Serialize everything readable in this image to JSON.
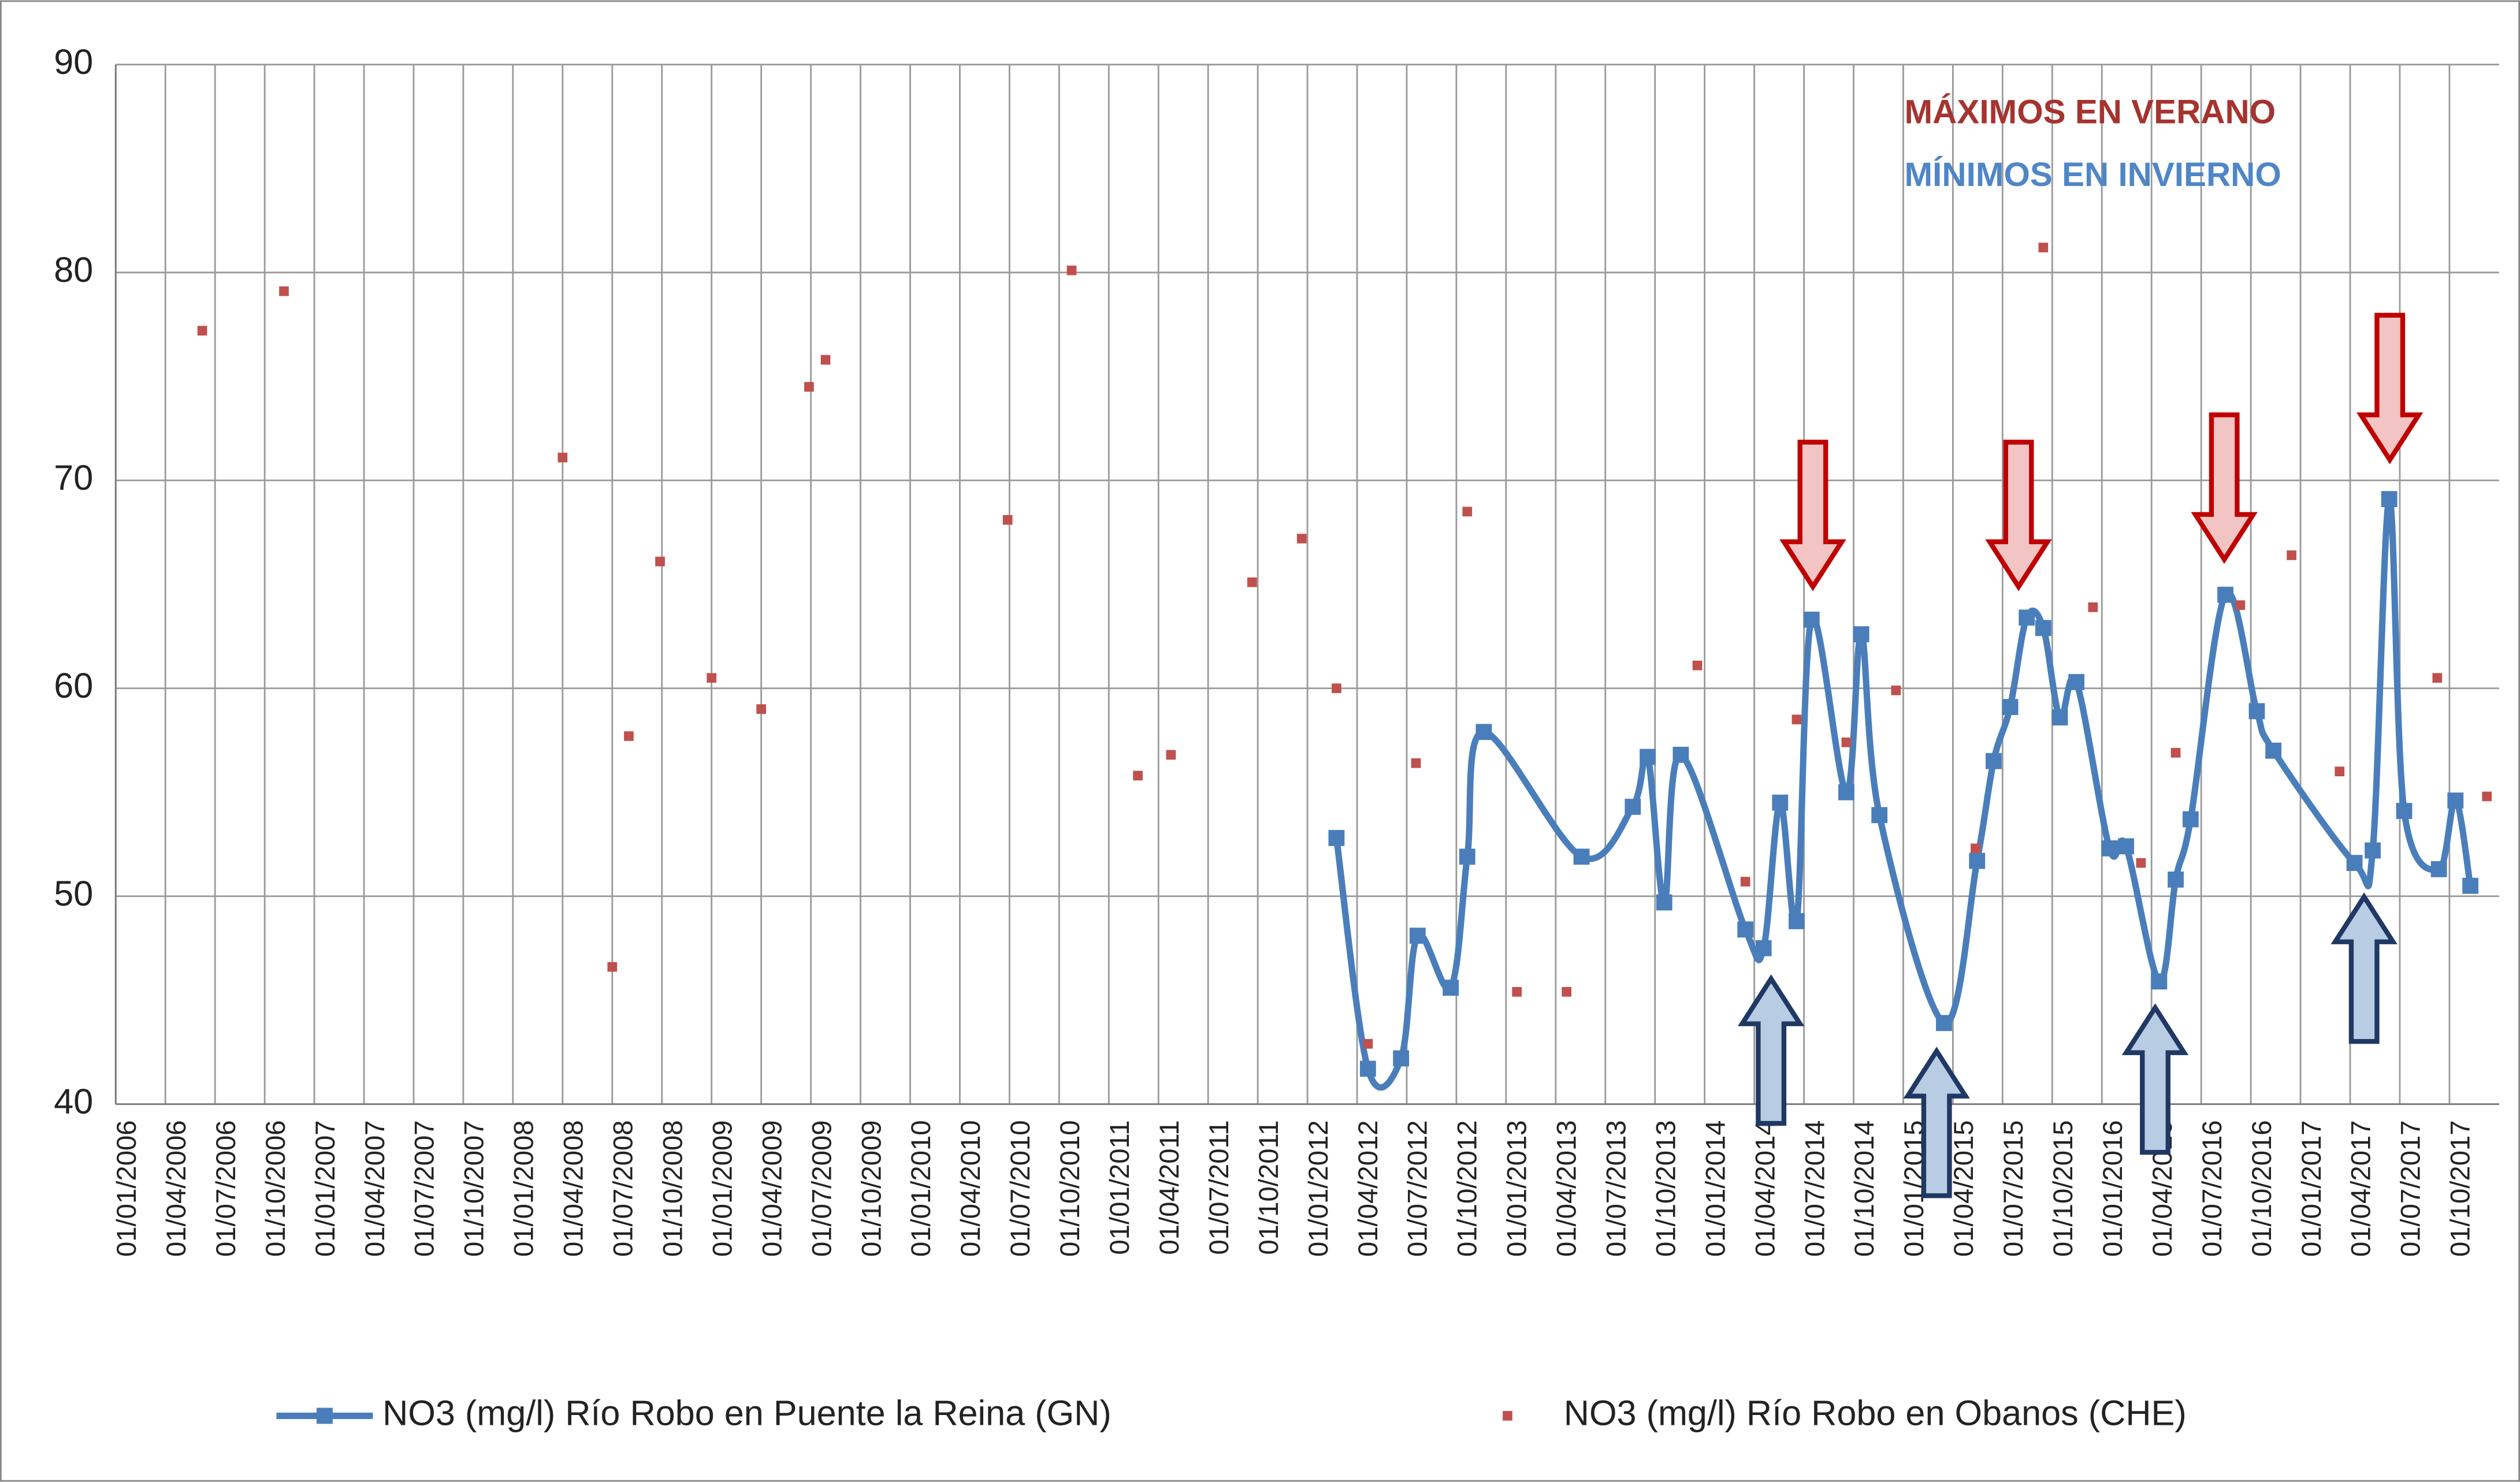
{
  "chart_data": {
    "type": "line",
    "annotations": [
      "MÁXIMOS EN VERANO",
      "MÍNIMOS EN INVIERNO"
    ],
    "xlim": [
      "01/01/2006",
      "01/01/2018"
    ],
    "xticks": [
      "01/01/2006",
      "01/04/2006",
      "01/07/2006",
      "01/10/2006",
      "01/01/2007",
      "01/04/2007",
      "01/07/2007",
      "01/10/2007",
      "01/01/2008",
      "01/04/2008",
      "01/07/2008",
      "01/10/2008",
      "01/01/2009",
      "01/04/2009",
      "01/07/2009",
      "01/10/2009",
      "01/01/2010",
      "01/04/2010",
      "01/07/2010",
      "01/10/2010",
      "01/01/2011",
      "01/04/2011",
      "01/07/2011",
      "01/10/2011",
      "01/01/2012",
      "01/04/2012",
      "01/07/2012",
      "01/10/2012",
      "01/01/2013",
      "01/04/2013",
      "01/07/2013",
      "01/10/2013",
      "01/01/2014",
      "01/04/2014",
      "01/07/2014",
      "01/10/2014",
      "01/01/2015",
      "01/04/2015",
      "01/07/2015",
      "01/10/2015",
      "01/01/2016",
      "01/04/2016",
      "01/07/2016",
      "01/10/2016",
      "01/01/2017",
      "01/04/2017",
      "01/07/2017",
      "01/10/2017"
    ],
    "ylim": [
      40,
      90
    ],
    "yticks": [
      40,
      50,
      60,
      70,
      80,
      90
    ],
    "grid": true,
    "series": [
      {
        "name": "NO3 (mg/l) Río Robo en Puente la Reina (GN)",
        "type": "line",
        "color": "#4a7ebb",
        "x": [
          "24/02/2012",
          "21/04/2012",
          "21/06/2012",
          "21/07/2012",
          "21/09/2012",
          "21/10/2012",
          "21/11/2012",
          "18/05/2013",
          "21/08/2013",
          "18/09/2013",
          "18/10/2013",
          "18/11/2013",
          "15/03/2014",
          "18/04/2014",
          "18/05/2014",
          "18/06/2014",
          "15/07/2014",
          "18/09/2014",
          "15/10/2014",
          "18/11/2014",
          "15/03/2015",
          "15/05/2015",
          "15/06/2015",
          "15/07/2015",
          "15/08/2015",
          "15/09/2015",
          "15/10/2015",
          "15/11/2015",
          "15/01/2016",
          "15/02/2016",
          "15/04/2016",
          "15/05/2016",
          "12/06/2016",
          "15/08/2016",
          "12/10/2016",
          "12/11/2016",
          "09/04/2017",
          "12/05/2017",
          "12/06/2017",
          "09/07/2017",
          "12/09/2017",
          "12/10/2017",
          "09/11/2017"
        ],
        "values": [
          52.8,
          41.7,
          42.2,
          48.1,
          45.6,
          51.9,
          57.9,
          51.9,
          54.3,
          56.7,
          49.7,
          56.8,
          48.4,
          47.5,
          54.5,
          48.8,
          63.3,
          55.0,
          62.6,
          53.9,
          43.9,
          51.7,
          56.5,
          59.1,
          63.4,
          62.9,
          58.6,
          60.3,
          52.3,
          52.4,
          45.9,
          50.8,
          53.7,
          64.5,
          58.9,
          57.0,
          51.6,
          52.2,
          69.1,
          54.1,
          51.3,
          54.6,
          50.5
        ]
      },
      {
        "name": "NO3 (mg/l) Río Robo en Obanos (CHE)",
        "type": "scatter",
        "color": "#c0504d",
        "x": [
          "08/06/2006",
          "06/11/2006",
          "01/04/2008",
          "01/07/2008",
          "01/08/2008",
          "28/09/2008",
          "01/01/2009",
          "01/04/2009",
          "28/06/2009",
          "28/07/2009",
          "28/06/2010",
          "24/10/2010",
          "24/02/2011",
          "24/04/2011",
          "21/09/2011",
          "21/12/2011",
          "24/02/2012",
          "21/04/2012",
          "18/07/2012",
          "21/10/2012",
          "21/01/2013",
          "21/04/2013",
          "18/12/2013",
          "15/03/2014",
          "18/06/2014",
          "18/09/2014",
          "18/12/2014",
          "12/05/2015",
          "15/09/2015",
          "15/12/2015",
          "12/03/2016",
          "15/05/2016",
          "12/09/2016",
          "15/12/2016",
          "12/03/2017",
          "09/09/2017",
          "09/12/2017"
        ],
        "values": [
          77.2,
          79.1,
          71.1,
          46.6,
          57.7,
          66.1,
          60.5,
          59.0,
          74.5,
          75.8,
          68.1,
          80.1,
          55.8,
          56.8,
          65.1,
          67.2,
          60.0,
          42.9,
          56.4,
          68.5,
          45.4,
          45.4,
          61.1,
          50.7,
          58.5,
          57.4,
          59.9,
          52.3,
          81.2,
          63.9,
          51.6,
          56.9,
          64.0,
          66.4,
          56.0,
          60.5,
          54.8
        ]
      }
    ]
  }
}
